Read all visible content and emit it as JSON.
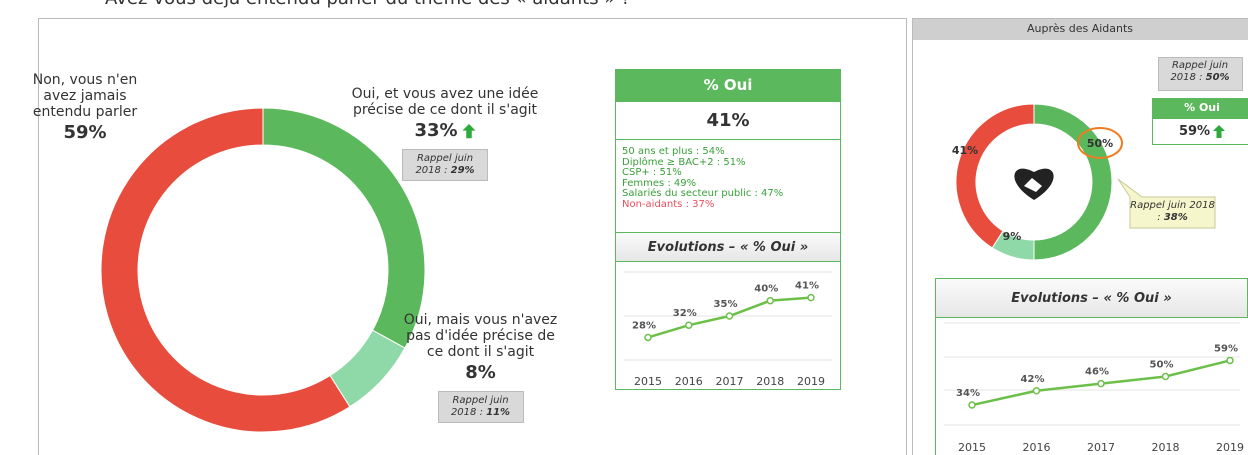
{
  "question": "Avez-vous déjà entendu parler du thème des « aidants » ?",
  "summary": {
    "header": "% Oui",
    "value": "41%",
    "details": [
      {
        "text": "50 ans et plus : 54%",
        "color": "#3aa03a"
      },
      {
        "text": "Diplôme ≥ BAC+2 : 51%",
        "color": "#3aa03a"
      },
      {
        "text": "CSP+ : 51%",
        "color": "#3aa03a"
      },
      {
        "text": "Femmes : 49%",
        "color": "#3aa03a"
      },
      {
        "text": "Salariés du secteur public : 47%",
        "color": "#3aa03a"
      },
      {
        "text": "Non-aidants : 37%",
        "color": "#e8505b"
      }
    ]
  },
  "aidants": {
    "title": "Auprès des Aidants",
    "recall": {
      "text": "Rappel juin 2018 :",
      "value": "50%"
    },
    "header": "% Oui",
    "value": "59%",
    "trend": "up"
  },
  "chart_data": [
    {
      "type": "donut",
      "categories": [
        "Oui, et vous avez une idée précise de ce dont il s'agit",
        "Oui, mais vous n'avez pas d'idée précise de ce dont il s'agit",
        "Non, vous n'en avez jamais entendu parler"
      ],
      "values": [
        33,
        8,
        59
      ],
      "value_labels": [
        "33%",
        "8%",
        "59%"
      ],
      "colors": [
        "#5cb85c",
        "#8fd9a8",
        "#e84c3d"
      ],
      "trend": [
        "up",
        null,
        null
      ],
      "recalls": [
        {
          "text": "Rappel juin 2018 :",
          "value": "29%"
        },
        {
          "text": "Rappel juin 2018 :",
          "value": "11%"
        },
        null
      ]
    },
    {
      "type": "line",
      "title": "Evolutions – « % Oui »",
      "categories": [
        "2015",
        "2016",
        "2017",
        "2018",
        "2019"
      ],
      "values": [
        28,
        32,
        35,
        40,
        41
      ],
      "value_labels": [
        "28%",
        "32%",
        "35%",
        "40%",
        "41%"
      ],
      "color": "#6cc04a",
      "ylim": [
        20,
        50
      ]
    },
    {
      "type": "donut",
      "categories": [
        null,
        null,
        null
      ],
      "values": [
        50,
        9,
        41
      ],
      "value_labels": [
        "50%",
        "9%",
        "41%"
      ],
      "colors": [
        "#5cb85c",
        "#8fd9a8",
        "#e84c3d"
      ],
      "highlight": 0,
      "recalls": [
        {
          "text": "Rappel juin 2018 :",
          "value": "38%"
        },
        null,
        null
      ]
    },
    {
      "type": "line",
      "title": "Evolutions – « % Oui »",
      "categories": [
        "2015",
        "2016",
        "2017",
        "2018",
        "2019"
      ],
      "values": [
        34,
        42,
        46,
        50,
        59
      ],
      "value_labels": [
        "34%",
        "42%",
        "46%",
        "50%",
        "59%"
      ],
      "color": "#6cc04a",
      "ylim": [
        20,
        80
      ]
    }
  ]
}
